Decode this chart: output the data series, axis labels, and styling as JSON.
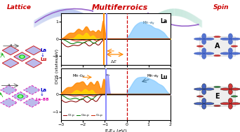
{
  "title": "Multiferroics",
  "title_color": "#cc0000",
  "title_fontsize": 8,
  "bg_color": "#ffffff",
  "red_color": "#cc0000",
  "blue_color": "#0000cc",
  "magenta_color": "#cc00aa",
  "green_color": "#00aa00",
  "orange_color": "#ff7700",
  "purple_color": "#8844aa",
  "dos_xlabel": "E-E$_F$ (eV)",
  "dos_ylabel": "DOS (states/eV)",
  "dos_xlim": [
    -3,
    2
  ],
  "dos_ylim": [
    -1.5,
    1.5
  ],
  "vline_orange": -1.05,
  "vline_blue": -0.95,
  "vline_red_dashed": 0.0
}
